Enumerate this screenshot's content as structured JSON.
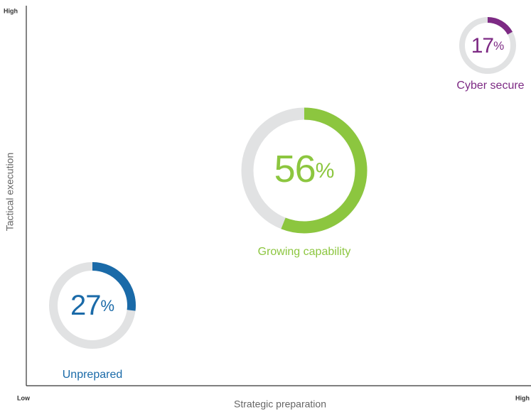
{
  "chart_data": {
    "type": "donut",
    "x_label": "Strategic preparation",
    "y_label": "Tactical execution",
    "x_low": "Low",
    "x_high": "High",
    "y_high": "High",
    "unit": "%",
    "items": [
      {
        "name": "Cyber secure",
        "value": 17,
        "color": "#7d2a84"
      },
      {
        "name": "Growing capability",
        "value": 56,
        "color": "#8cc63f"
      },
      {
        "name": "Unprepared",
        "value": 27,
        "color": "#1a6aa8"
      }
    ],
    "track_color": "#e1e2e3"
  }
}
